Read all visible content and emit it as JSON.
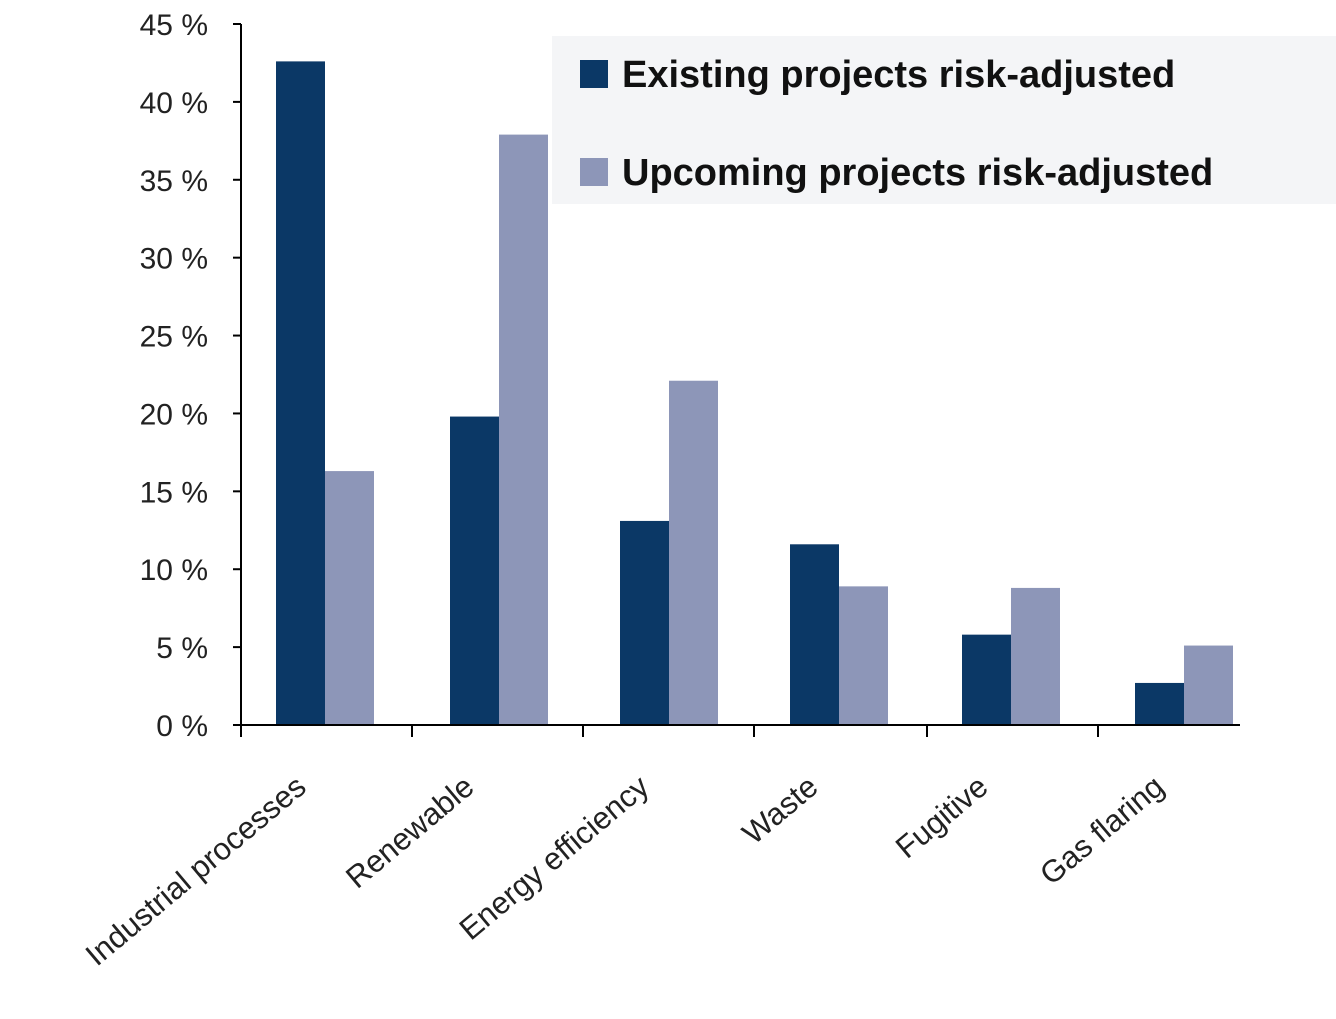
{
  "chart_data": {
    "type": "bar",
    "categories": [
      "Industrial processes",
      "Renewable",
      "Energy efficiency",
      "Waste",
      "Fugitive",
      "Gas flaring"
    ],
    "series": [
      {
        "name": "Existing projects risk-adjusted",
        "values": [
          42.6,
          19.8,
          13.1,
          11.6,
          5.8,
          2.7
        ],
        "color": "#0b3866"
      },
      {
        "name": "Upcoming projects risk-adjusted",
        "values": [
          16.3,
          37.9,
          22.1,
          8.9,
          8.8,
          5.1
        ],
        "color": "#8d96b8"
      }
    ],
    "ylim": [
      0,
      45
    ],
    "yticks": [
      0,
      5,
      10,
      15,
      20,
      25,
      30,
      35,
      40,
      45
    ],
    "ytick_labels": [
      "0 %",
      "5 %",
      "10 %",
      "15 %",
      "20 %",
      "25 %",
      "30 %",
      "35 %",
      "40 %",
      "45 %"
    ],
    "xlabel": "",
    "ylabel": "",
    "title": "",
    "grid": false,
    "legend_position": "top-right"
  }
}
